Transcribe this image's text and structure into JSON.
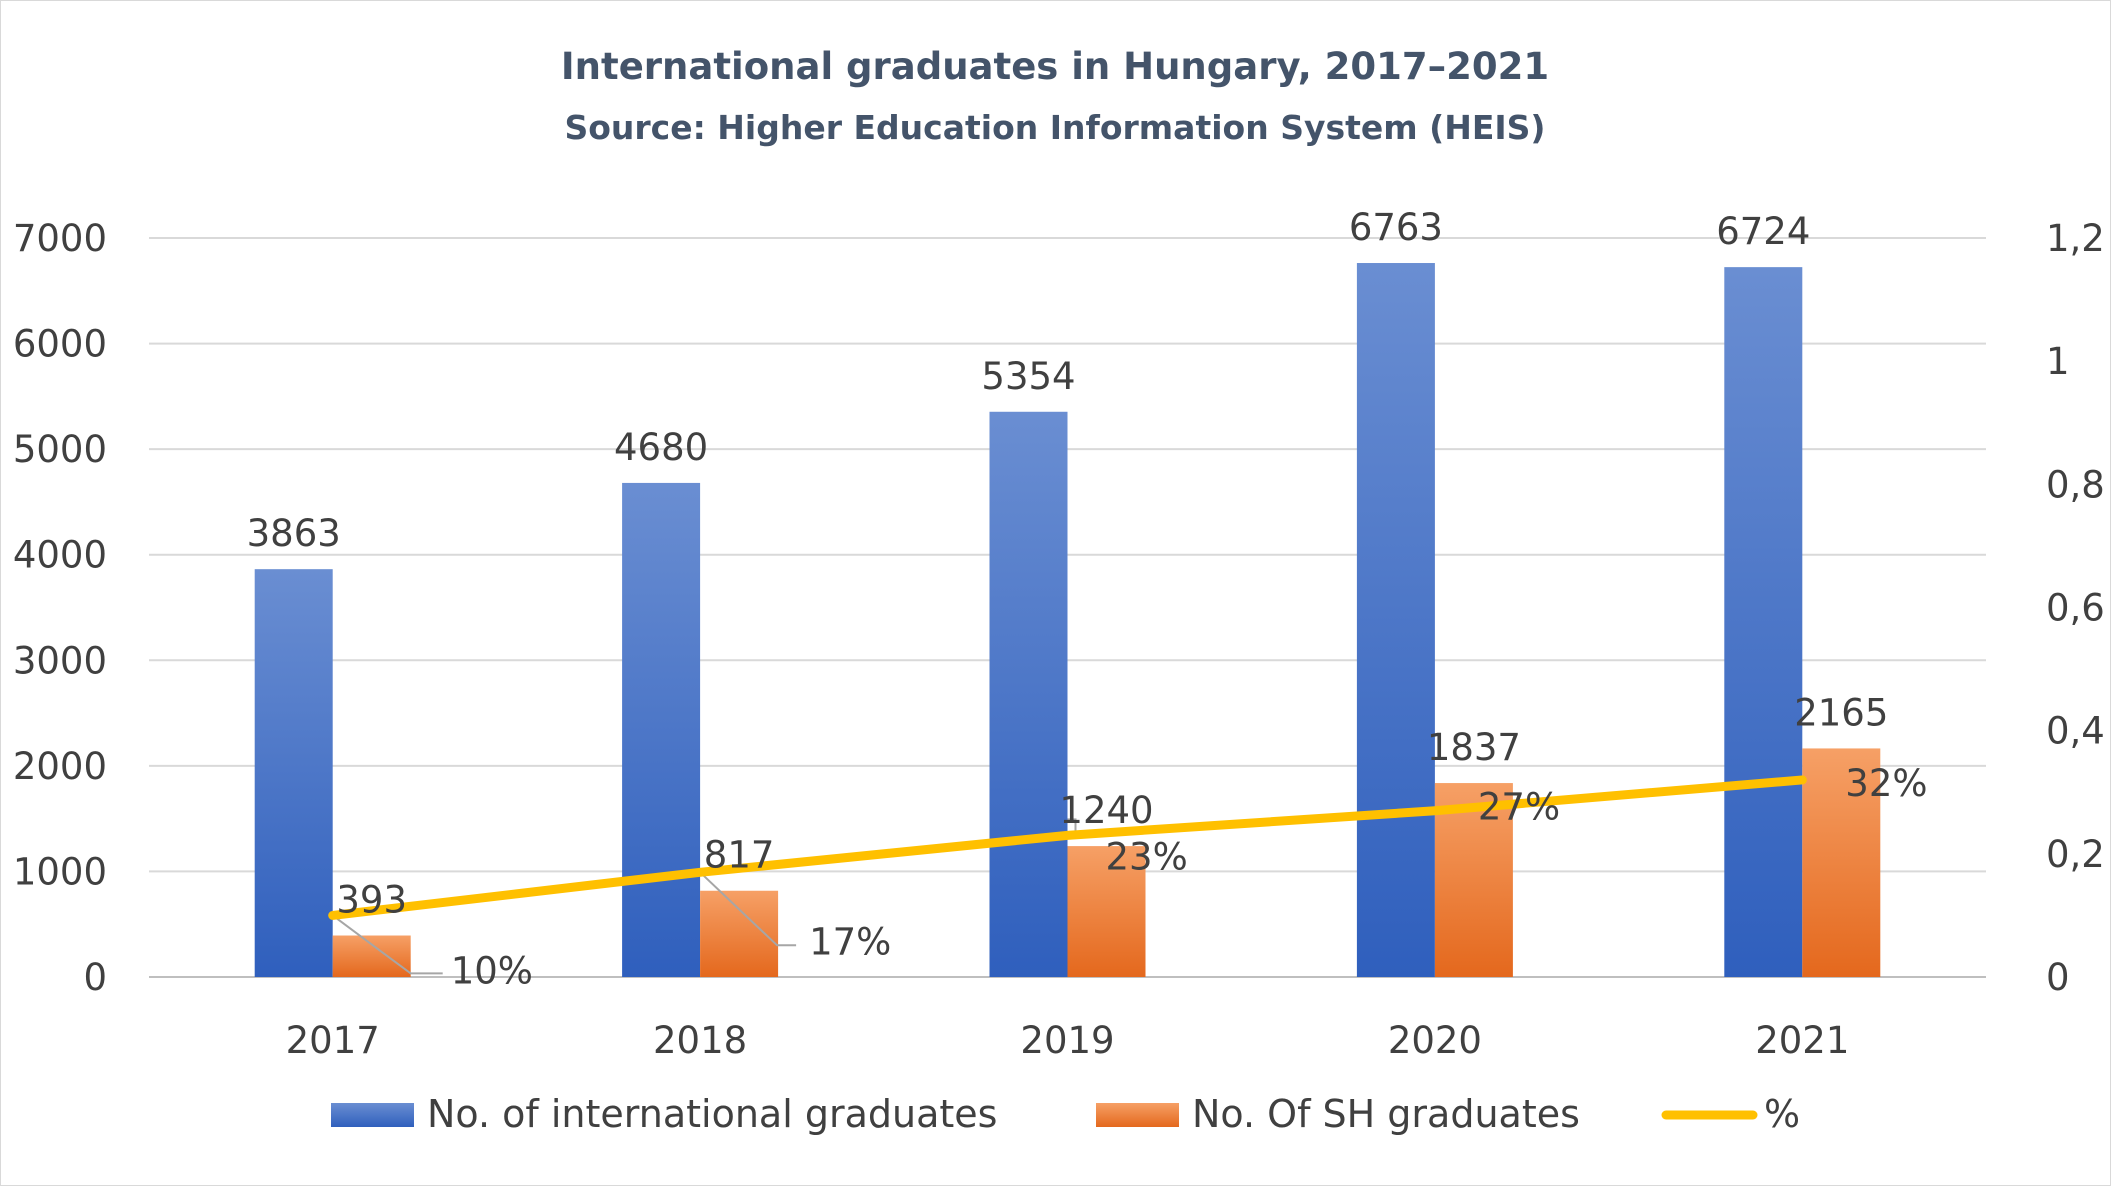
{
  "chart_data": {
    "type": "bar",
    "title": "International graduates in Hungary, 2017–2021",
    "subtitle": "Source: Higher Education Information System (HEIS)",
    "categories": [
      "2017",
      "2018",
      "2019",
      "2020",
      "2021"
    ],
    "series": [
      {
        "name": "No. of international graduates",
        "kind": "bar",
        "axis": "left",
        "color": "#4472c4",
        "values": [
          3863,
          4680,
          5354,
          6763,
          6724
        ],
        "labels": [
          "3863",
          "4680",
          "5354",
          "6763",
          "6724"
        ]
      },
      {
        "name": "No. Of SH graduates",
        "kind": "bar",
        "axis": "left",
        "color": "#ed7d31",
        "values": [
          393,
          817,
          1240,
          1837,
          2165
        ],
        "labels": [
          "393",
          "817",
          "1240",
          "1837",
          "2165"
        ]
      },
      {
        "name": "%",
        "kind": "line",
        "axis": "right",
        "color": "#ffc000",
        "values": [
          0.1,
          0.17,
          0.23,
          0.27,
          0.32
        ],
        "labels": [
          "10%",
          "17%",
          "23%",
          "27%",
          "32%"
        ]
      }
    ],
    "y_left": {
      "ylim": [
        0,
        7000
      ],
      "ticks": [
        0,
        1000,
        2000,
        3000,
        4000,
        5000,
        6000,
        7000
      ],
      "tick_labels": [
        "0",
        "1000",
        "2000",
        "3000",
        "4000",
        "5000",
        "6000",
        "7000"
      ]
    },
    "y_right": {
      "ylim": [
        0,
        1.2
      ],
      "ticks": [
        0,
        0.2,
        0.4,
        0.6,
        0.8,
        1.0,
        1.2
      ],
      "tick_labels": [
        "0",
        "0,2",
        "0,4",
        "0,6",
        "0,8",
        "1",
        "1,2"
      ]
    },
    "grid": true,
    "legend": "bottom"
  }
}
